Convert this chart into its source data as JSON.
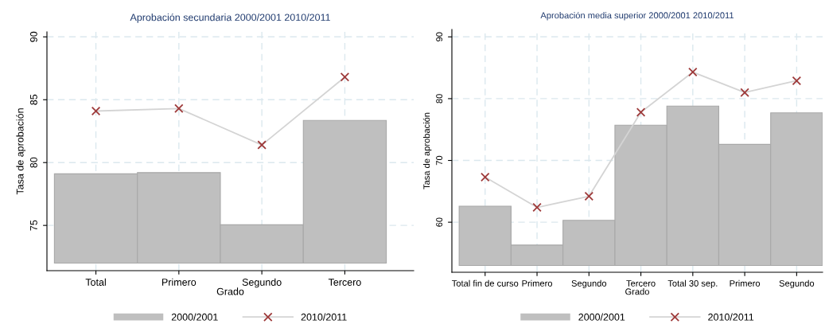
{
  "chart_data": [
    {
      "type": "bar",
      "title": "Aprobación secundaria 2000/2001 2010/2011",
      "xlabel": "Grado",
      "ylabel": "Tasa de aprobación",
      "categories": [
        "Total",
        "Primero",
        "Segundo",
        "Tercero"
      ],
      "ylim": [
        71.4,
        90.4
      ],
      "yticks": [
        75,
        80,
        85,
        90
      ],
      "grid": true,
      "legend": "bottom",
      "series": [
        {
          "name": "2000/2001",
          "color": "#bfbfbf",
          "base": [
            72,
            72,
            72,
            72
          ],
          "values": [
            7.1,
            7.2,
            3.05,
            11.35
          ]
        },
        {
          "name": "2010/2011",
          "type": "line",
          "color": "#9e3a3a",
          "marker": "cross",
          "values": [
            84.1,
            84.3,
            81.4,
            86.8
          ]
        }
      ]
    },
    {
      "type": "bar",
      "title": "Aprobación media superior 2000/2001 2010/2011",
      "xlabel": "Grado",
      "ylabel": "Tasa de aprobación",
      "categories": [
        "Total fin de curso",
        "Primero",
        "Segundo",
        "Tercero",
        "Total 30 sep.",
        "Primero",
        "Segundo"
      ],
      "ylim": [
        51.9,
        91.2
      ],
      "yticks": [
        60,
        70,
        80,
        90
      ],
      "grid": true,
      "legend": "bottom",
      "series": [
        {
          "name": "2000/2001",
          "color": "#bfbfbf",
          "base": [
            53,
            53,
            53,
            53,
            53,
            53,
            53
          ],
          "values": [
            9.6,
            3.3,
            7.3,
            22.7,
            25.8,
            19.6,
            24.7
          ]
        },
        {
          "name": "2010/2011",
          "type": "line",
          "color": "#9e3a3a",
          "marker": "cross",
          "values": [
            67.3,
            62.4,
            64.2,
            77.8,
            84.3,
            81.0,
            82.9
          ]
        }
      ]
    }
  ]
}
